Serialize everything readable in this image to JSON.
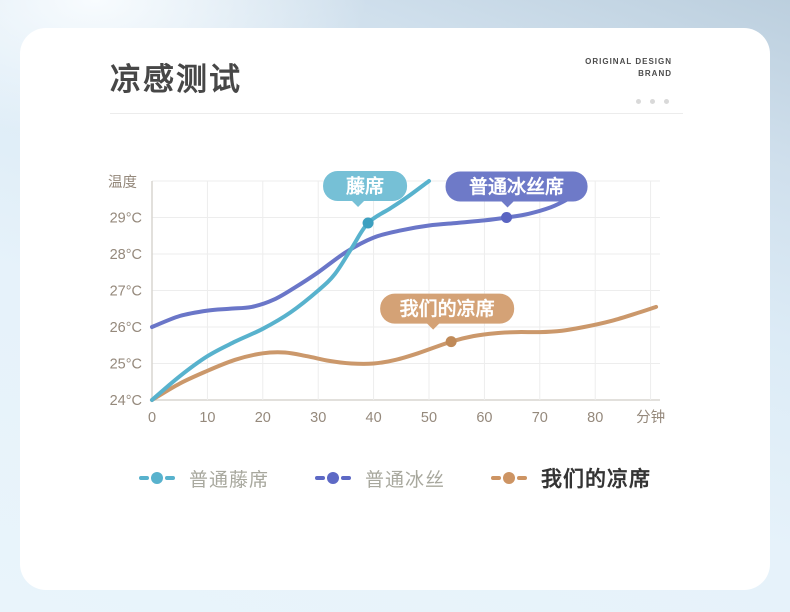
{
  "header": {
    "title": "凉感测试",
    "brand_line1": "ORIGINAL DESIGN",
    "brand_line2": "BRAND"
  },
  "chart_data": {
    "type": "line",
    "title": "凉感测试",
    "xlabel": "分钟",
    "ylabel": "温度",
    "xlim": [
      0,
      92
    ],
    "ylim": [
      24,
      30
    ],
    "grid": true,
    "x_ticks": [
      0,
      10,
      20,
      30,
      40,
      50,
      60,
      70,
      80
    ],
    "y_ticks": [
      24,
      25,
      26,
      27,
      28,
      29
    ],
    "y_tick_suffix": "°C",
    "legend_position": "bottom",
    "series": [
      {
        "name": "普通藤席",
        "badge": "藤席",
        "color": "#58b2cd",
        "marker_color": "#3da0c0",
        "badge_color": "#76c0d6",
        "marker_point": {
          "x": 39,
          "y": 28.85
        },
        "points": [
          [
            0,
            24.0
          ],
          [
            5,
            24.65
          ],
          [
            10,
            25.2
          ],
          [
            15,
            25.6
          ],
          [
            20,
            25.95
          ],
          [
            25,
            26.4
          ],
          [
            30,
            27.0
          ],
          [
            33,
            27.45
          ],
          [
            36,
            28.15
          ],
          [
            39,
            28.85
          ],
          [
            43,
            29.25
          ],
          [
            46,
            29.55
          ],
          [
            50,
            30.0
          ]
        ]
      },
      {
        "name": "普通冰丝",
        "badge": "普通冰丝席",
        "color": "#6a76c8",
        "marker_color": "#5a64c2",
        "badge_color": "#6e7ac8",
        "marker_point": {
          "x": 64,
          "y": 29.0
        },
        "points": [
          [
            0,
            26.0
          ],
          [
            5,
            26.3
          ],
          [
            10,
            26.45
          ],
          [
            14,
            26.5
          ],
          [
            18,
            26.55
          ],
          [
            22,
            26.75
          ],
          [
            26,
            27.1
          ],
          [
            30,
            27.5
          ],
          [
            35,
            28.05
          ],
          [
            40,
            28.45
          ],
          [
            45,
            28.65
          ],
          [
            50,
            28.78
          ],
          [
            55,
            28.85
          ],
          [
            60,
            28.92
          ],
          [
            64,
            29.0
          ],
          [
            68,
            29.1
          ],
          [
            72,
            29.28
          ],
          [
            75,
            29.5
          ],
          [
            78,
            29.8
          ]
        ]
      },
      {
        "name": "我们的凉席",
        "badge": "我们的凉席",
        "color": "#cb986b",
        "marker_color": "#c08a58",
        "badge_color": "#d4a276",
        "marker_point": {
          "x": 54,
          "y": 25.6
        },
        "points": [
          [
            0,
            24.0
          ],
          [
            5,
            24.45
          ],
          [
            10,
            24.8
          ],
          [
            15,
            25.1
          ],
          [
            20,
            25.28
          ],
          [
            24,
            25.3
          ],
          [
            28,
            25.2
          ],
          [
            32,
            25.07
          ],
          [
            36,
            25.0
          ],
          [
            40,
            25.0
          ],
          [
            44,
            25.1
          ],
          [
            48,
            25.28
          ],
          [
            54,
            25.6
          ],
          [
            58,
            25.75
          ],
          [
            62,
            25.83
          ],
          [
            66,
            25.86
          ],
          [
            70,
            25.86
          ],
          [
            74,
            25.9
          ],
          [
            78,
            26.0
          ],
          [
            83,
            26.17
          ],
          [
            88,
            26.4
          ],
          [
            91,
            26.55
          ]
        ]
      }
    ],
    "legend": [
      {
        "label": "普通藤席",
        "color": "#58b2cd",
        "emphasis": false
      },
      {
        "label": "普通冰丝",
        "color": "#5d69c5",
        "emphasis": false
      },
      {
        "label": "我们的凉席",
        "color": "#cd9463",
        "emphasis": true
      }
    ]
  }
}
